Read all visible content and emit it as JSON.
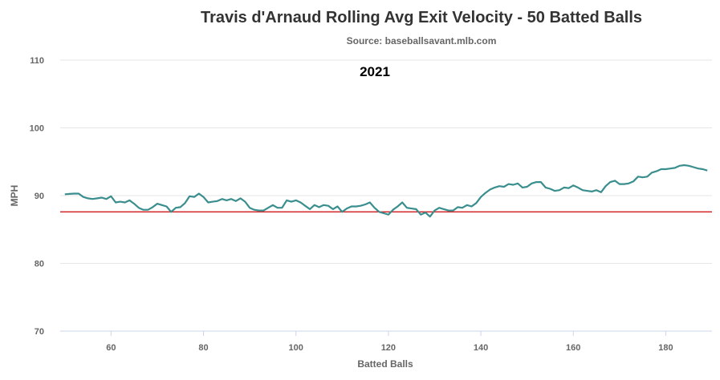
{
  "chart_data": {
    "type": "line",
    "title": "Travis d'Arnaud Rolling Avg Exit Velocity - 50 Batted Balls",
    "subtitle": "Source: baseballsavant.mlb.com",
    "annotation": "2021",
    "xlabel": "Batted Balls",
    "ylabel": "MPH",
    "xlim": [
      49,
      190
    ],
    "ylim": [
      70,
      110
    ],
    "x_ticks": [
      60,
      80,
      100,
      120,
      140,
      160,
      180
    ],
    "y_ticks": [
      70,
      80,
      90,
      100,
      110
    ],
    "grid": true,
    "reference_line": {
      "value": 87.6,
      "color": "#cc0000"
    },
    "series": [
      {
        "color": "#3a8e8e",
        "x": [
          50,
          51,
          52,
          53,
          54,
          55,
          56,
          57,
          58,
          59,
          60,
          61,
          62,
          63,
          64,
          65,
          66,
          67,
          68,
          69,
          70,
          71,
          72,
          73,
          74,
          75,
          76,
          77,
          78,
          79,
          80,
          81,
          82,
          83,
          84,
          85,
          86,
          87,
          88,
          89,
          90,
          91,
          92,
          93,
          94,
          95,
          96,
          97,
          98,
          99,
          100,
          101,
          102,
          103,
          104,
          105,
          106,
          107,
          108,
          109,
          110,
          111,
          112,
          113,
          114,
          115,
          116,
          117,
          118,
          119,
          120,
          121,
          122,
          123,
          124,
          125,
          126,
          127,
          128,
          129,
          130,
          131,
          132,
          133,
          134,
          135,
          136,
          137,
          138,
          139,
          140,
          141,
          142,
          143,
          144,
          145,
          146,
          147,
          148,
          149,
          150,
          151,
          152,
          153,
          154,
          155,
          156,
          157,
          158,
          159,
          160,
          161,
          162,
          163,
          164,
          165,
          166,
          167,
          168,
          169,
          170,
          171,
          172,
          173,
          174,
          175,
          176,
          177,
          178,
          179,
          180,
          181,
          182,
          183,
          184,
          185,
          186,
          187,
          188,
          189
        ],
        "values": [
          90.2,
          90.25,
          90.3,
          90.3,
          89.8,
          89.6,
          89.5,
          89.6,
          89.7,
          89.5,
          89.9,
          89.0,
          89.1,
          89.0,
          89.3,
          88.8,
          88.2,
          87.9,
          87.9,
          88.3,
          88.8,
          88.6,
          88.4,
          87.6,
          88.2,
          88.3,
          88.9,
          89.9,
          89.8,
          90.3,
          89.8,
          89.0,
          89.1,
          89.2,
          89.5,
          89.3,
          89.5,
          89.2,
          89.6,
          89.1,
          88.2,
          87.9,
          87.8,
          87.8,
          88.2,
          88.6,
          88.2,
          88.2,
          89.3,
          89.1,
          89.3,
          89.0,
          88.5,
          88.0,
          88.6,
          88.3,
          88.6,
          88.5,
          88.0,
          88.4,
          87.6,
          88.1,
          88.4,
          88.4,
          88.5,
          88.7,
          89.0,
          88.2,
          87.6,
          87.4,
          87.2,
          87.9,
          88.4,
          89.0,
          88.2,
          88.1,
          88.0,
          87.2,
          87.5,
          86.9,
          87.8,
          88.2,
          88.0,
          87.8,
          87.8,
          88.3,
          88.2,
          88.6,
          88.4,
          88.9,
          89.8,
          90.4,
          90.9,
          91.2,
          91.4,
          91.3,
          91.7,
          91.6,
          91.8,
          91.2,
          91.3,
          91.8,
          92.0,
          92.0,
          91.2,
          91.0,
          90.7,
          90.8,
          91.2,
          91.1,
          91.5,
          91.2,
          90.8,
          90.7,
          90.6,
          90.8,
          90.5,
          91.4,
          92.0,
          92.2,
          91.7,
          91.7,
          91.8,
          92.1,
          92.8,
          92.7,
          92.8,
          93.4,
          93.6,
          93.9,
          93.9,
          94.0,
          94.1,
          94.4,
          94.5,
          94.4,
          94.2,
          94.0,
          93.9,
          93.7
        ]
      }
    ]
  }
}
